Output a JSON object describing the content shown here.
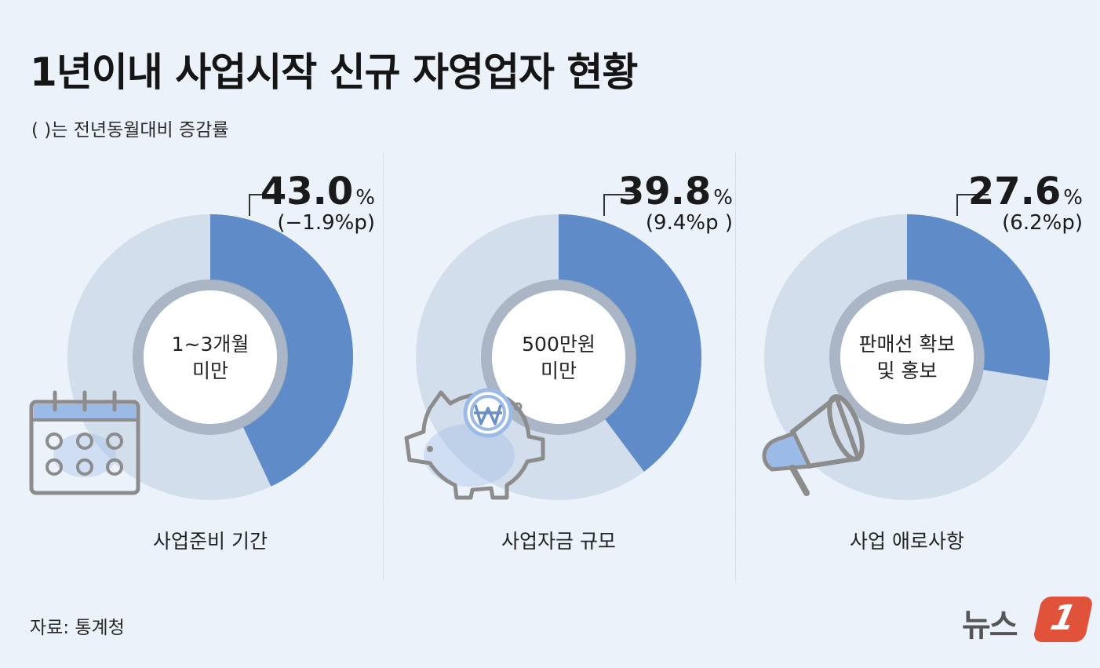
{
  "header": {
    "title": "1년이내 사업시작 신규 자영업자 현황",
    "subtitle": "( )는 전년동월대비 증감률"
  },
  "footer": {
    "source": "자료: 통계청",
    "logo_text": "뉴스",
    "logo_badge": "1"
  },
  "colors": {
    "highlight": "#5f8bc8",
    "track": "#d3deec",
    "inner_ring": "#a3afbf",
    "inner_fill": "#ffffff",
    "icon": "#8c8c8c",
    "icon_accent": "#9bbbe6"
  },
  "chart_data": [
    {
      "type": "pie",
      "category": "사업준비 기간",
      "center_label": [
        "1~3개월",
        "미만"
      ],
      "value": 43.0,
      "value_label": "43.0",
      "unit": "%",
      "change_label": "(−1.9%p)",
      "icon": "calendar-icon"
    },
    {
      "type": "pie",
      "category": "사업자금 규모",
      "center_label": [
        "500만원",
        "미만"
      ],
      "value": 39.8,
      "value_label": "39.8",
      "unit": "%",
      "change_label": "(9.4%p )",
      "icon": "piggy-bank-icon"
    },
    {
      "type": "pie",
      "category": "사업 애로사항",
      "center_label": [
        "판매선 확보",
        "및 홍보"
      ],
      "value": 27.6,
      "value_label": "27.6",
      "unit": "%",
      "change_label": "(6.2%p)",
      "icon": "megaphone-icon"
    }
  ]
}
